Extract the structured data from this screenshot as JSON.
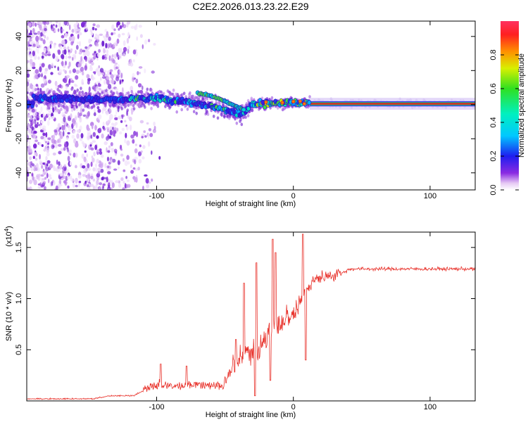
{
  "title": "C2E2.2026.013.23.22.E29",
  "colors": {
    "snr_line": "#e8312a",
    "ridge_core": "#e02020",
    "axis": "#000000"
  },
  "chart_data": [
    {
      "type": "heatmap",
      "name": "spectrogram",
      "xlabel": "Height of straight line (km)",
      "ylabel": "Frequency (Hz)",
      "xlim": [
        -195,
        133
      ],
      "ylim": [
        -50,
        49
      ],
      "xticks": [
        -100,
        0,
        100
      ],
      "yticks": [
        -40,
        -20,
        0,
        20,
        40
      ],
      "colorbar": {
        "label": "Normalized spectral amplitude",
        "range": [
          0,
          1
        ],
        "ticks": [
          0.0,
          0.2,
          0.4,
          0.6,
          0.8
        ],
        "colormap": "white-purple-blue-cyan-green-yellow-orange-red"
      },
      "ridge": {
        "description_points": [
          {
            "x": -190,
            "y": 4
          },
          {
            "x": -150,
            "y": 3
          },
          {
            "x": -120,
            "y": 3
          },
          {
            "x": -100,
            "y": 4
          },
          {
            "x": -80,
            "y": 2
          },
          {
            "x": -65,
            "y": 0
          },
          {
            "x": -50,
            "y": -3
          },
          {
            "x": -38,
            "y": -6
          },
          {
            "x": -30,
            "y": 0
          },
          {
            "x": -10,
            "y": 1
          },
          {
            "x": 10,
            "y": 1
          },
          {
            "x": 133,
            "y": 0.5
          }
        ],
        "upper_branch": [
          {
            "x": -70,
            "y": 7
          },
          {
            "x": -60,
            "y": 5
          },
          {
            "x": -50,
            "y": 2
          },
          {
            "x": -42,
            "y": -1
          },
          {
            "x": -36,
            "y": -3
          }
        ]
      },
      "scatter_region": {
        "x_min": -195,
        "x_max": -110,
        "y_min": -50,
        "y_max": 49
      }
    },
    {
      "type": "line",
      "name": "snr",
      "xlabel": "Height of straight line (km)",
      "ylabel": "SNR (10 * v/v)",
      "scale_label": "(x10",
      "scale_exponent": "4",
      "scale_suffix": ")",
      "xlim": [
        -195,
        133
      ],
      "ylim": [
        0,
        1.65
      ],
      "xticks": [
        -100,
        0,
        100
      ],
      "yticks": [
        0.5,
        1.0,
        1.5
      ],
      "ytick_labels": [
        "0.5",
        "1.0",
        "1.5"
      ],
      "baseline_segments": [
        {
          "x0": -195,
          "x1": -140,
          "level": 0.02
        },
        {
          "x0": -140,
          "x1": -110,
          "level": 0.05
        },
        {
          "x0": -110,
          "x1": -45,
          "level": 0.15
        },
        {
          "x0": -45,
          "x1": -20,
          "level": 0.45
        },
        {
          "x0": -20,
          "x1": 0,
          "level": 0.75
        },
        {
          "x0": 0,
          "x1": 10,
          "level": 0.95
        },
        {
          "x0": 10,
          "x1": 35,
          "level": 1.2
        },
        {
          "x0": 35,
          "x1": 133,
          "level": 1.29
        }
      ],
      "spikes": [
        {
          "x": -97,
          "y": 0.36
        },
        {
          "x": -78,
          "y": 0.34
        },
        {
          "x": -42,
          "y": 0.6
        },
        {
          "x": -36,
          "y": 1.15
        },
        {
          "x": -27,
          "y": 1.35
        },
        {
          "x": -15,
          "y": 1.58
        },
        {
          "x": -13,
          "y": 1.45
        },
        {
          "x": 7,
          "y": 1.63
        }
      ],
      "dips": [
        {
          "x": -28,
          "y": 0.05
        },
        {
          "x": -17,
          "y": 0.2
        },
        {
          "x": 9,
          "y": 0.4
        }
      ]
    }
  ]
}
